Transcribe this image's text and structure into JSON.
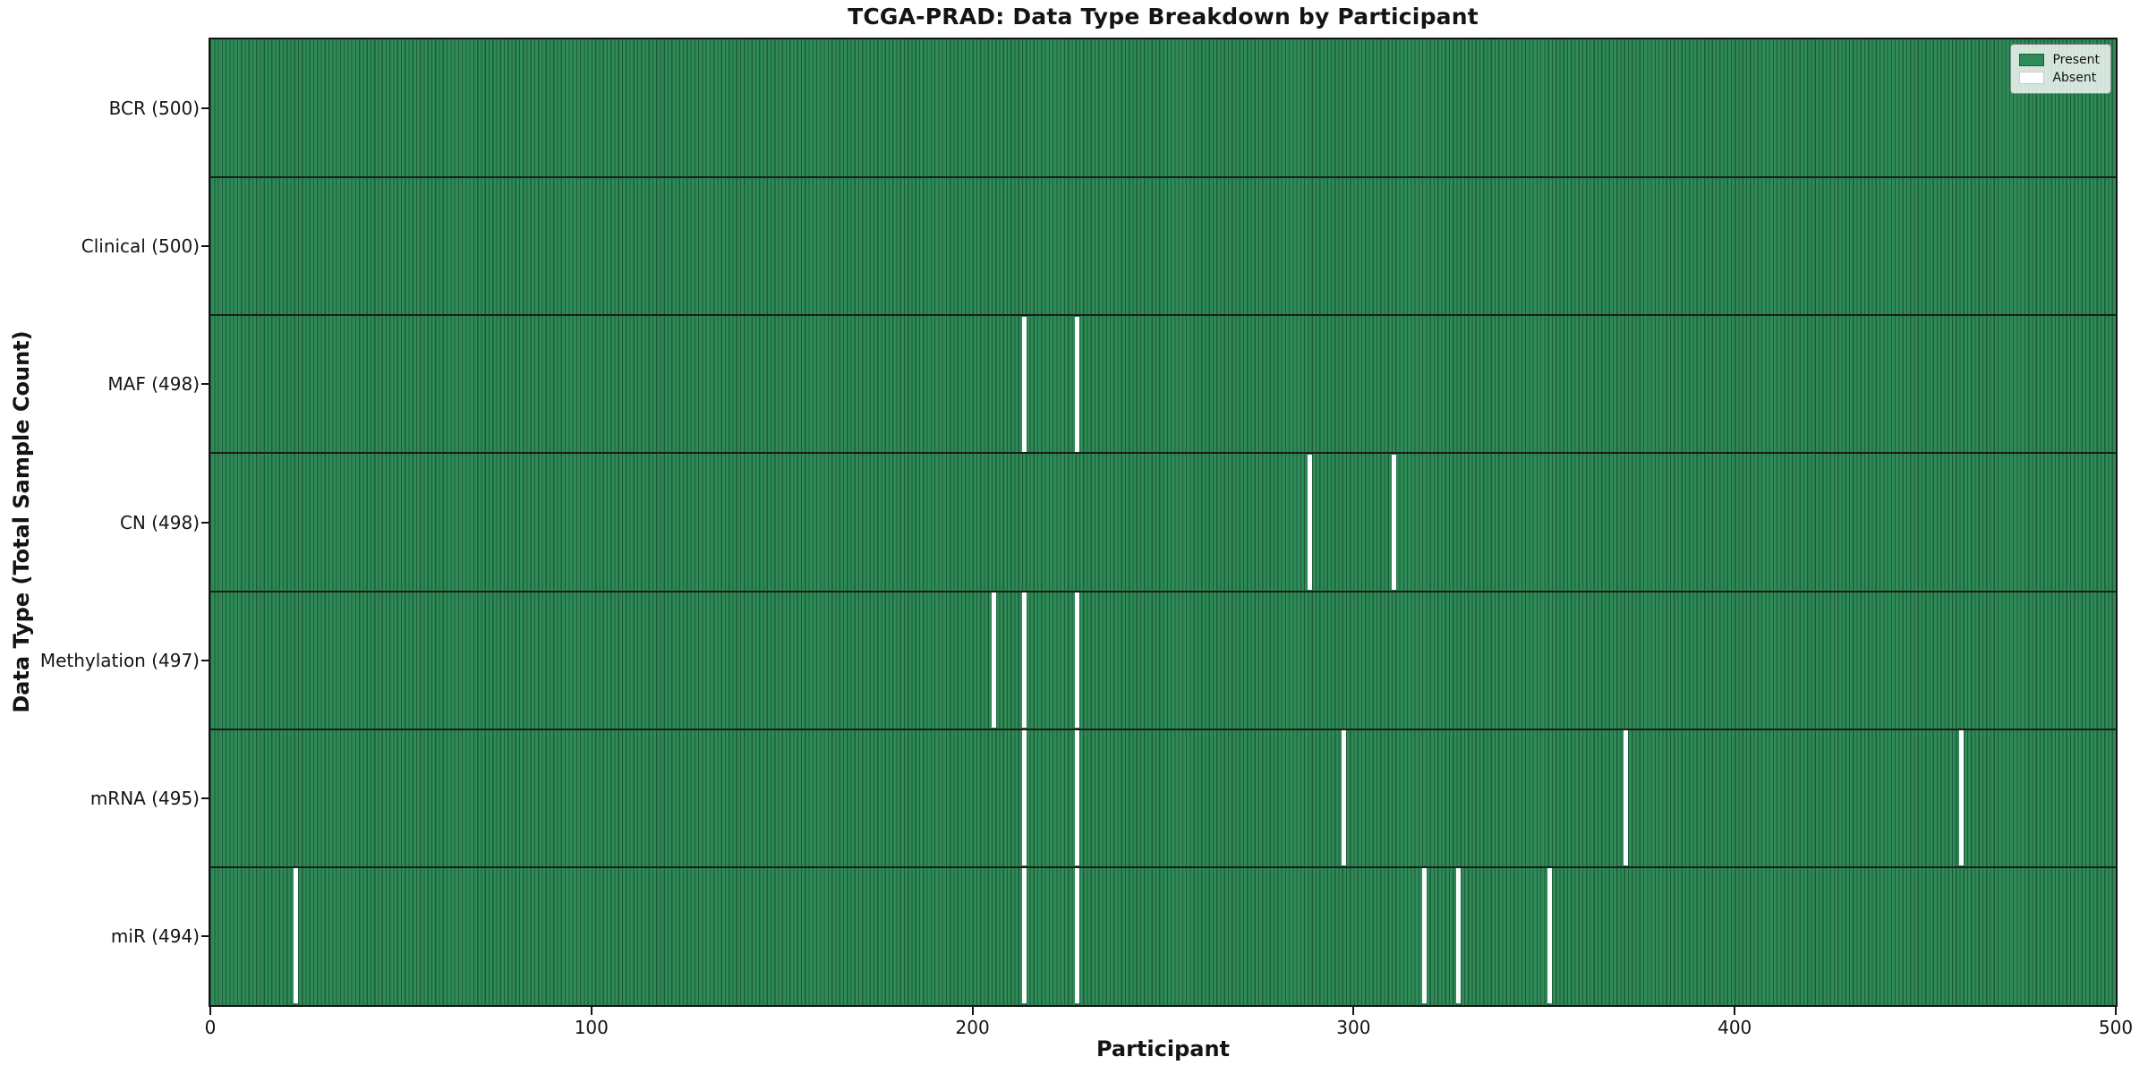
{
  "chart_data": {
    "type": "heatmap",
    "title": "TCGA-PRAD: Data Type Breakdown by Participant",
    "xlabel": "Participant",
    "ylabel": "Data Type (Total Sample Count)",
    "x_range": [
      0,
      500
    ],
    "x_ticks": [
      0,
      100,
      200,
      300,
      400,
      500
    ],
    "n_participants": 500,
    "grid": false,
    "legend": {
      "position": "upper right",
      "items": [
        {
          "label": "Present",
          "color": "#2e8b57"
        },
        {
          "label": "Absent",
          "color": "#ffffff"
        }
      ]
    },
    "rows": [
      {
        "label": "BCR (500)",
        "total": 500,
        "absent_participants": []
      },
      {
        "label": "Clinical (500)",
        "total": 500,
        "absent_participants": []
      },
      {
        "label": "MAF (498)",
        "total": 498,
        "absent_participants": [
          213,
          227
        ]
      },
      {
        "label": "CN (498)",
        "total": 498,
        "absent_participants": [
          288,
          310
        ]
      },
      {
        "label": "Methylation (497)",
        "total": 497,
        "absent_participants": [
          205,
          213,
          227
        ]
      },
      {
        "label": "mRNA (495)",
        "total": 495,
        "absent_participants": [
          213,
          227,
          297,
          371,
          459
        ]
      },
      {
        "label": "miR (494)",
        "total": 494,
        "absent_participants": [
          22,
          213,
          227,
          318,
          327,
          351
        ]
      }
    ],
    "colors": {
      "present": "#2e8b57",
      "absent": "#ffffff",
      "bar_edge": "#1e5c39",
      "row_line": "#1c1c1c",
      "spine": "#141414",
      "legend_border": "#8a8a8a"
    }
  }
}
